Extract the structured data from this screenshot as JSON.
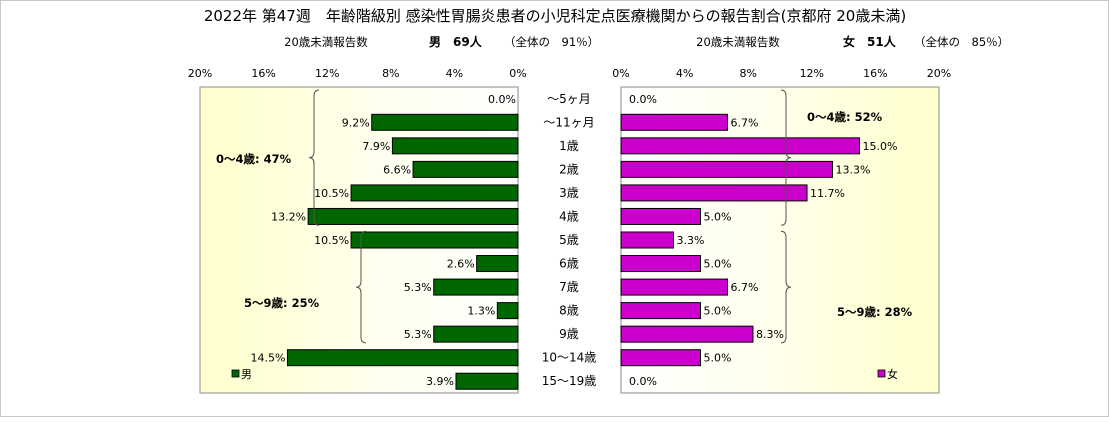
{
  "chart_data": {
    "type": "bar",
    "orientation": "horizontal-butterfly",
    "title": "2022年 第47週　年齢階級別 感染性胃腸炎患者の小児科定点医療機関からの報告割合(京都府 20歳未満)",
    "left_panel": {
      "count_label": "20歳未満報告数",
      "summary": "男　69人",
      "share": "（全体の　91％）"
    },
    "right_panel": {
      "count_label": "20歳未満報告数",
      "summary": "女　51人",
      "share": "（全体の　85％）"
    },
    "categories": [
      "～5ヶ月",
      "～11ヶ月",
      "1歳",
      "2歳",
      "3歳",
      "4歳",
      "5歳",
      "6歳",
      "7歳",
      "8歳",
      "9歳",
      "10～14歳",
      "15～19歳"
    ],
    "series": [
      {
        "name": "男",
        "color": "#006600",
        "values": [
          0.0,
          9.2,
          7.9,
          6.6,
          10.5,
          13.2,
          10.5,
          2.6,
          5.3,
          1.3,
          5.3,
          14.5,
          3.9
        ],
        "labels": [
          "0.0%",
          "9.2%",
          "7.9%",
          "6.6%",
          "10.5%",
          "13.2%",
          "10.5%",
          "2.6%",
          "5.3%",
          "1.3%",
          "5.3%",
          "14.5%",
          "3.9%"
        ]
      },
      {
        "name": "女",
        "color": "#cc00cc",
        "values": [
          0.0,
          6.7,
          15.0,
          13.3,
          11.7,
          5.0,
          3.3,
          5.0,
          6.7,
          5.0,
          8.3,
          5.0,
          0.0
        ],
        "labels": [
          "0.0%",
          "6.7%",
          "15.0%",
          "13.3%",
          "11.7%",
          "5.0%",
          "3.3%",
          "5.0%",
          "6.7%",
          "5.0%",
          "8.3%",
          "5.0%",
          "0.0%"
        ]
      }
    ],
    "xlim": [
      0,
      20
    ],
    "x_ticks": [
      20,
      16,
      12,
      8,
      4,
      0
    ],
    "x_tick_labels": [
      "20%",
      "16%",
      "12%",
      "8%",
      "4%",
      "0%"
    ],
    "annotations": {
      "left_0_4": "0～4歳: 47%",
      "left_5_9": "5～9歳: 25%",
      "right_0_4": "0～4歳: 52%",
      "right_5_9": "5～9歳: 28%"
    },
    "legend": "bottom-inside",
    "grid": false
  }
}
